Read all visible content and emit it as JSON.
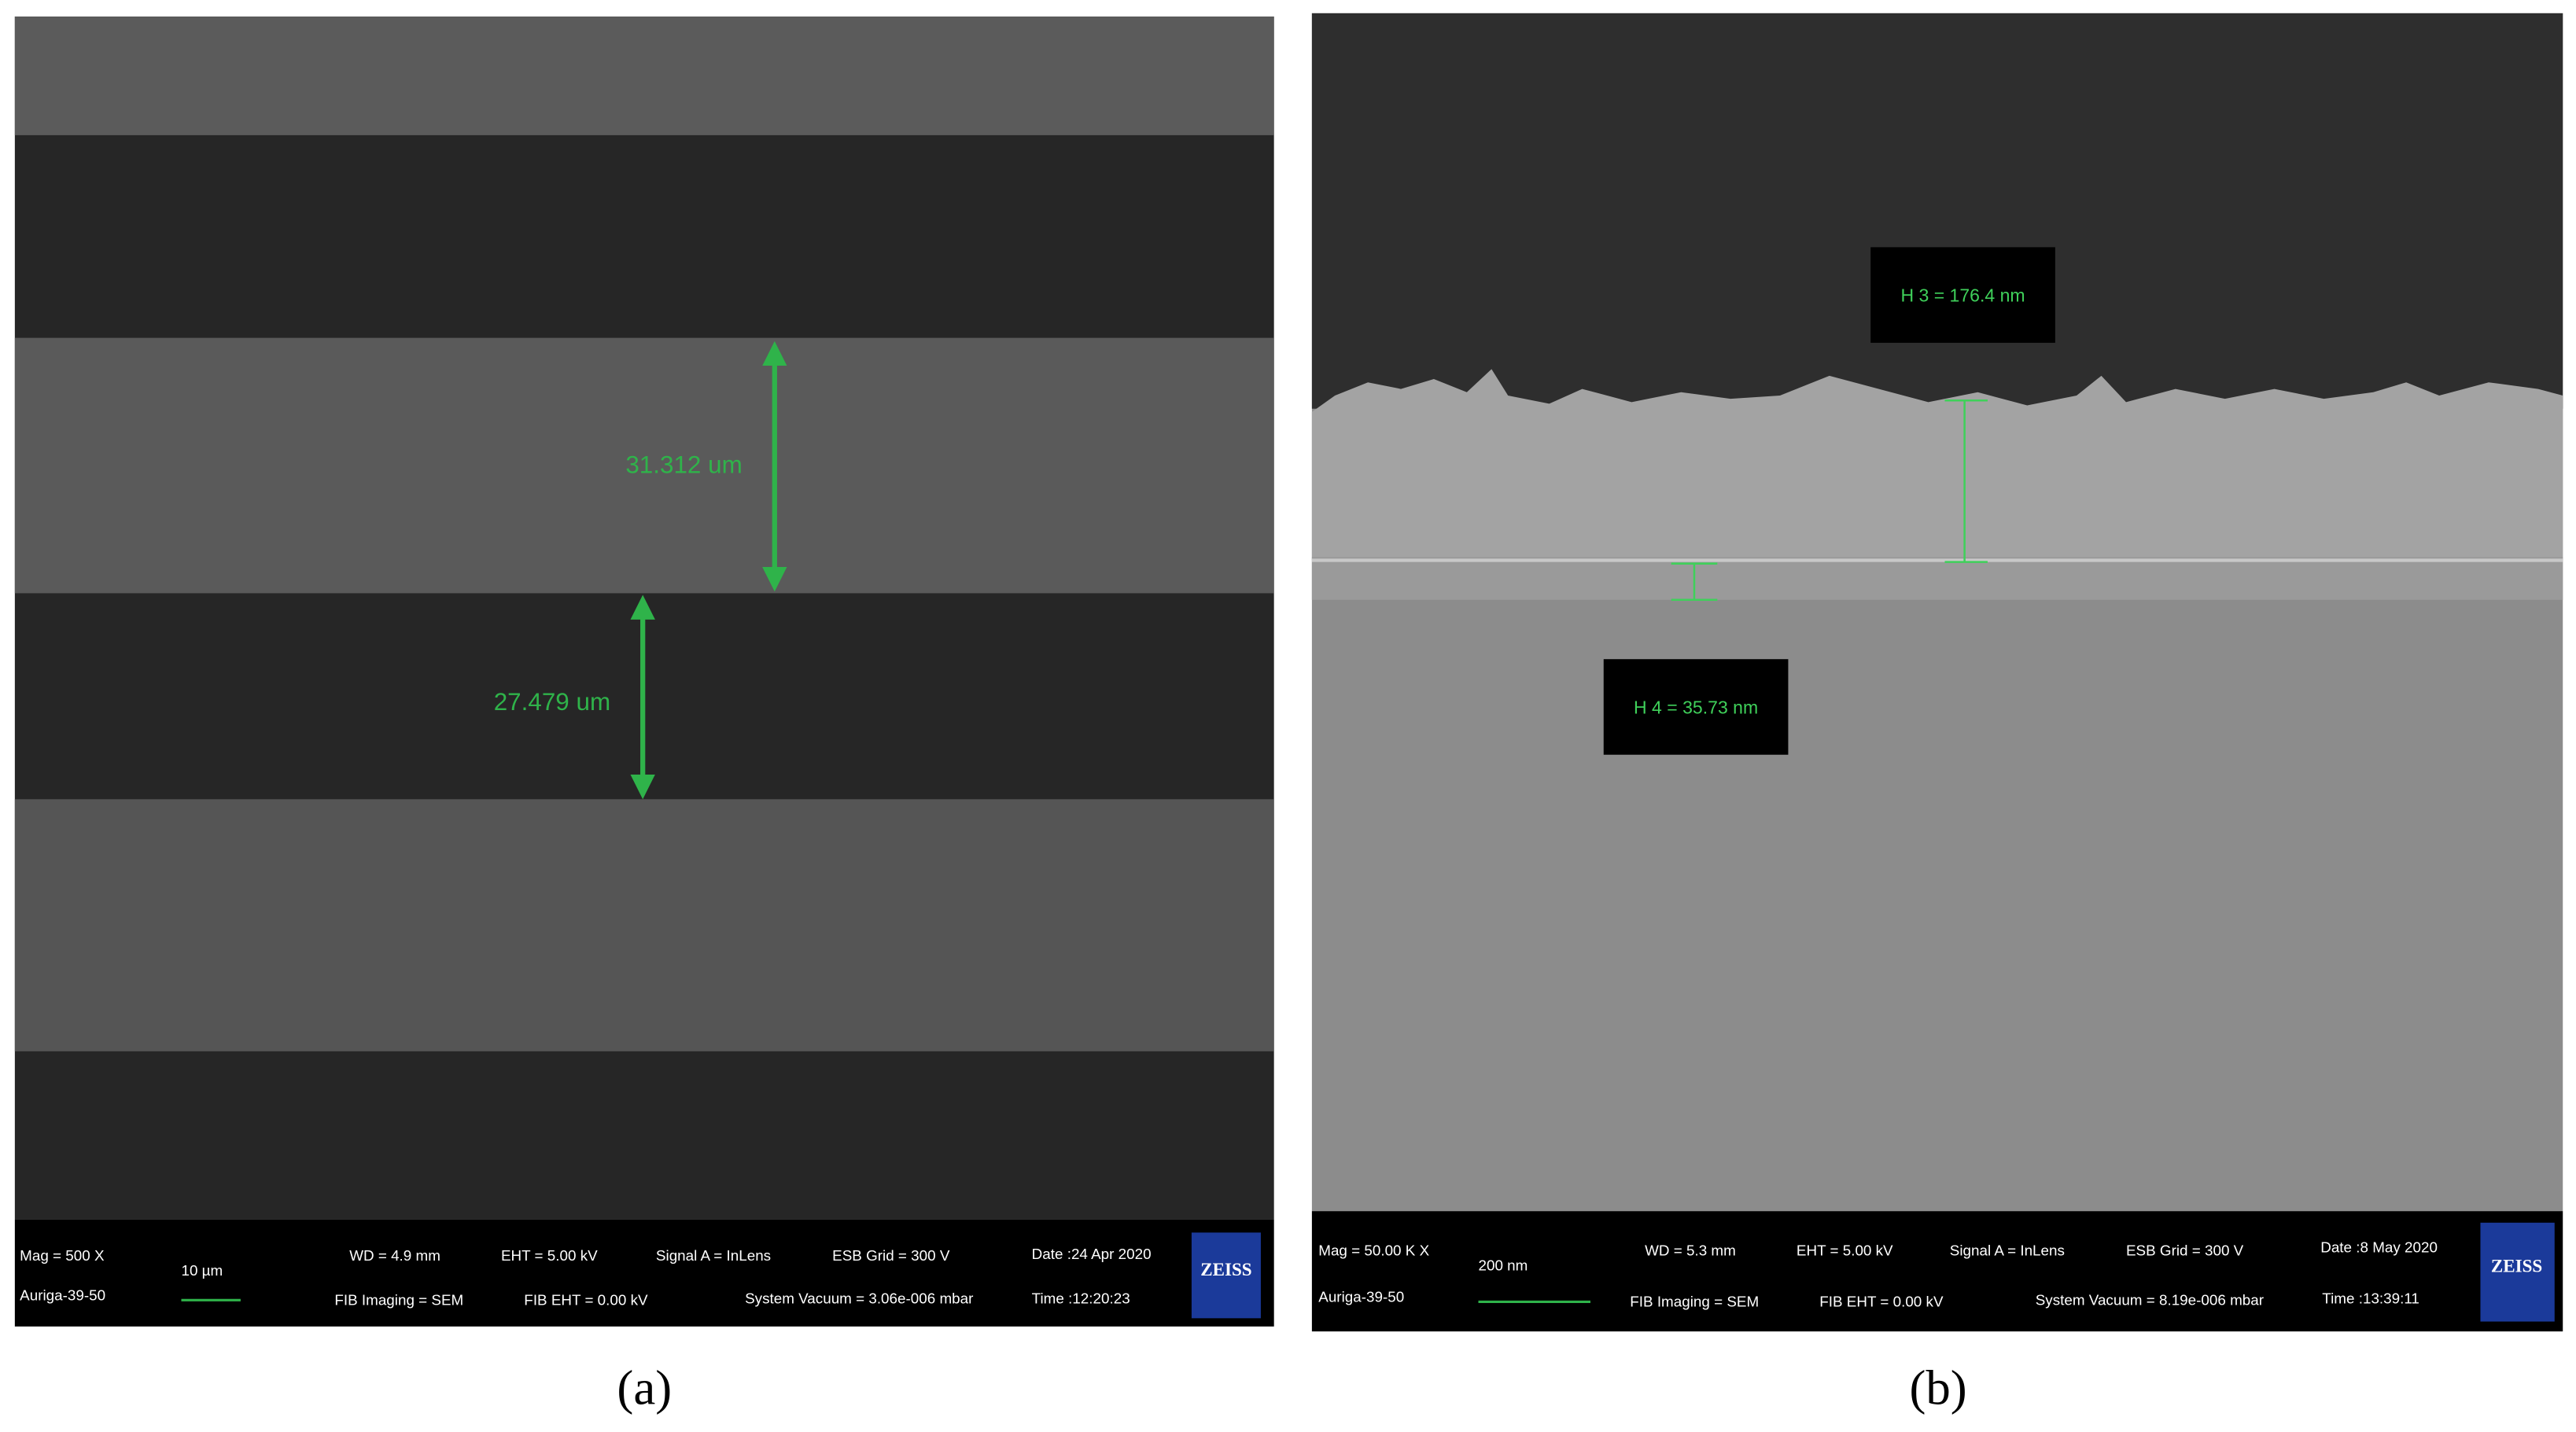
{
  "panels": [
    {
      "label": "(a)",
      "measurements": [
        "31.312 um",
        "27.479 um"
      ],
      "info": {
        "mag": "Mag =  500 X",
        "instrument": "Auriga-39-50",
        "scale": "10 µm",
        "wd": "WD =  4.9 mm",
        "eht": "EHT =  5.00 kV",
        "signal": "Signal A = InLens",
        "esb": "ESB Grid =  300 V",
        "date": "Date :24 Apr 2020",
        "fib_imaging": "FIB Imaging = SEM",
        "fib_eht": "FIB EHT =  0.00 kV",
        "vacuum": "System Vacuum = 3.06e-006 mbar",
        "time": "Time :12:20:23"
      },
      "logo": "ZEISS"
    },
    {
      "label": "(b)",
      "measurements": [
        "H 3 = 176.4 nm",
        "H 4 = 35.73 nm"
      ],
      "info": {
        "mag": "Mag =  50.00 K X",
        "instrument": "Auriga-39-50",
        "scale": "200 nm",
        "wd": "WD =  5.3 mm",
        "eht": "EHT =  5.00 kV",
        "signal": "Signal A = InLens",
        "esb": "ESB Grid =  300 V",
        "date": "Date :8 May 2020",
        "fib_imaging": "FIB Imaging = SEM",
        "fib_eht": "FIB EHT =  0.00 kV",
        "vacuum": "System Vacuum = 8.19e-006 mbar",
        "time": "Time :13:39:11"
      },
      "logo": "ZEISS"
    }
  ]
}
